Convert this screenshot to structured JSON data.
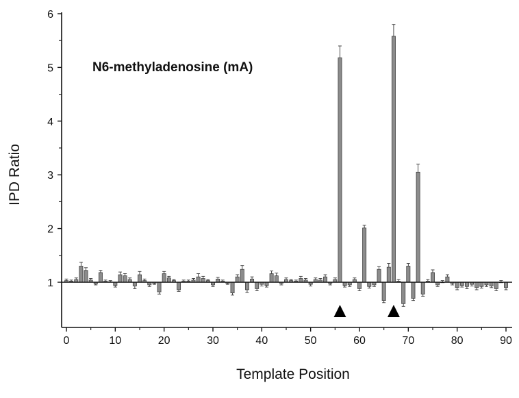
{
  "chart_data": {
    "type": "bar",
    "title": "",
    "annotation": "N6-methyladenosine (mA)",
    "xlabel": "Template Position",
    "ylabel": "IPD Ratio",
    "xlim": [
      -1,
      91
    ],
    "ylim": [
      0.3,
      6
    ],
    "baseline": 1,
    "xticks": [
      0,
      10,
      20,
      30,
      40,
      50,
      60,
      70,
      80,
      90
    ],
    "yticks": [
      1,
      2,
      3,
      4,
      5,
      6
    ],
    "x": [
      0,
      1,
      2,
      3,
      4,
      5,
      6,
      7,
      8,
      9,
      10,
      11,
      12,
      13,
      14,
      15,
      16,
      17,
      18,
      19,
      20,
      21,
      22,
      23,
      24,
      25,
      26,
      27,
      28,
      29,
      30,
      31,
      32,
      33,
      34,
      35,
      36,
      37,
      38,
      39,
      40,
      41,
      42,
      43,
      44,
      45,
      46,
      47,
      48,
      49,
      50,
      51,
      52,
      53,
      54,
      55,
      56,
      57,
      58,
      59,
      60,
      61,
      62,
      63,
      64,
      65,
      66,
      67,
      68,
      69,
      70,
      71,
      72,
      73,
      74,
      75,
      76,
      77,
      78,
      79,
      80,
      81,
      82,
      83,
      84,
      85,
      86,
      87,
      88,
      89,
      90
    ],
    "values": [
      1.03,
      1.02,
      1.05,
      1.3,
      1.22,
      1.04,
      0.97,
      1.18,
      1.02,
      1.01,
      0.94,
      1.14,
      1.12,
      1.05,
      0.93,
      1.14,
      1.03,
      0.95,
      0.98,
      0.82,
      1.16,
      1.08,
      1.03,
      0.86,
      1.02,
      1.02,
      1.04,
      1.1,
      1.07,
      1.03,
      0.95,
      1.06,
      1.02,
      0.98,
      0.8,
      1.1,
      1.24,
      0.86,
      1.06,
      0.88,
      0.96,
      0.94,
      1.16,
      1.12,
      0.98,
      1.05,
      1.03,
      1.02,
      1.07,
      1.04,
      0.96,
      1.05,
      1.04,
      1.1,
      0.98,
      1.05,
      5.18,
      0.94,
      0.95,
      1.05,
      0.88,
      2.01,
      0.92,
      0.95,
      1.24,
      0.66,
      1.28,
      5.58,
      1.02,
      0.6,
      1.3,
      0.7,
      3.05,
      0.78,
      1.02,
      1.18,
      0.95,
      1.0,
      1.1,
      0.98,
      0.9,
      0.94,
      0.92,
      0.96,
      0.9,
      0.92,
      0.95,
      0.93,
      0.88,
      1.0,
      0.9
    ],
    "errors": [
      0.03,
      0.02,
      0.03,
      0.07,
      0.05,
      0.03,
      0.02,
      0.04,
      0.02,
      0.02,
      0.03,
      0.05,
      0.04,
      0.03,
      0.05,
      0.06,
      0.03,
      0.03,
      0.02,
      0.04,
      0.04,
      0.03,
      0.02,
      0.03,
      0.02,
      0.02,
      0.03,
      0.06,
      0.04,
      0.02,
      0.03,
      0.03,
      0.02,
      0.02,
      0.04,
      0.04,
      0.07,
      0.05,
      0.04,
      0.04,
      0.03,
      0.03,
      0.05,
      0.05,
      0.03,
      0.03,
      0.02,
      0.02,
      0.04,
      0.03,
      0.03,
      0.03,
      0.03,
      0.04,
      0.03,
      0.03,
      0.22,
      0.03,
      0.03,
      0.03,
      0.04,
      0.05,
      0.03,
      0.03,
      0.05,
      0.04,
      0.07,
      0.22,
      0.03,
      0.05,
      0.05,
      0.04,
      0.15,
      0.04,
      0.03,
      0.05,
      0.03,
      0.03,
      0.04,
      0.03,
      0.04,
      0.03,
      0.04,
      0.03,
      0.04,
      0.03,
      0.03,
      0.03,
      0.04,
      0.03,
      0.04
    ],
    "markers": [
      56,
      67
    ],
    "bar_color": "#8c8c8c",
    "bar_stroke": "#333333",
    "axis_color": "#111111"
  }
}
